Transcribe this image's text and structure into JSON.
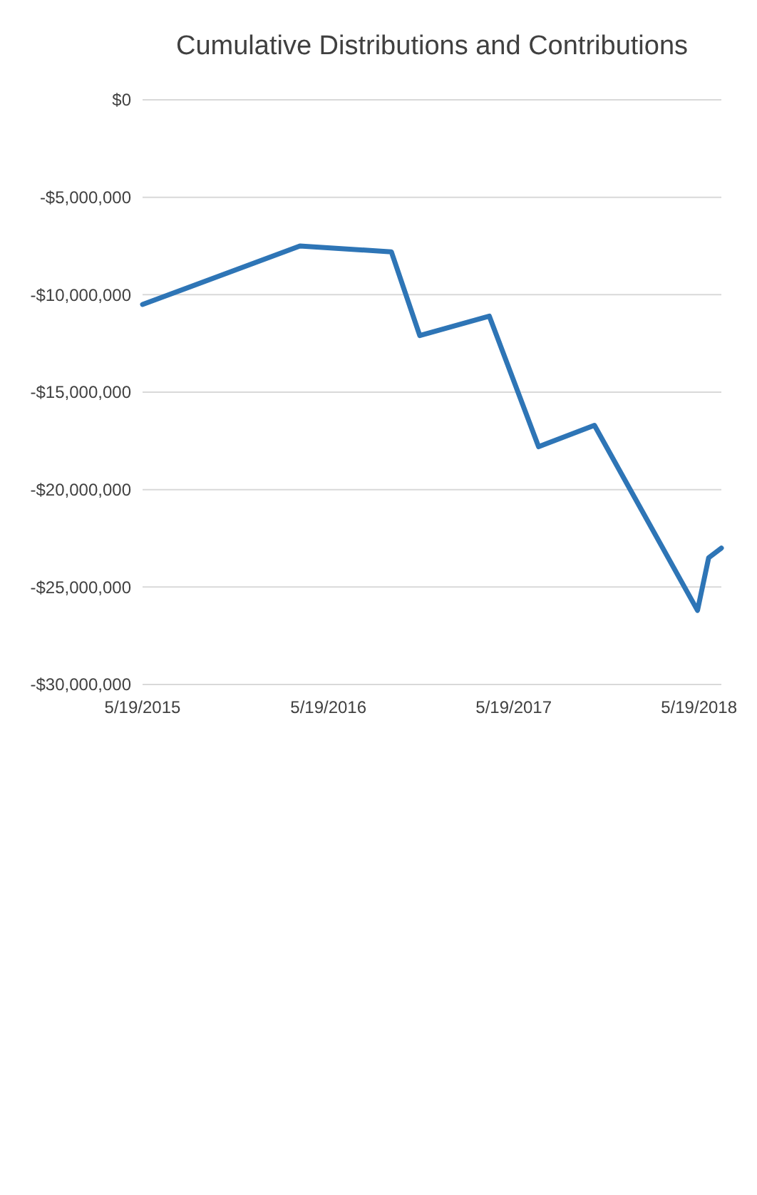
{
  "chart_data": {
    "type": "line",
    "title": "Cumulative Distributions and Contributions",
    "x": [
      "2015-05-19",
      "2016-03-24",
      "2016-09-20",
      "2016-11-15",
      "2017-04-01",
      "2017-07-07",
      "2017-10-25",
      "2018-05-16",
      "2018-06-07",
      "2018-07-02"
    ],
    "series": [
      {
        "color": "#2e75b6",
        "values": [
          -10500000,
          -7500000,
          -7800000,
          -12100000,
          -11100000,
          -17800000,
          -16700000,
          -26200000,
          -23500000,
          -23000000
        ]
      }
    ],
    "xlim": [
      "2015-05-19",
      "2018-07-02"
    ],
    "xticks": [
      {
        "value": "2015-05-19",
        "label": "5/19/2015"
      },
      {
        "value": "2016-05-19",
        "label": "5/19/2016"
      },
      {
        "value": "2017-05-19",
        "label": "5/19/2017"
      },
      {
        "value": "2018-05-19",
        "label": "5/19/2018"
      }
    ],
    "ylim": [
      -30000000,
      0
    ],
    "yticks": [
      {
        "value": -30000000,
        "label": "-$30,000,000"
      },
      {
        "value": -25000000,
        "label": "-$25,000,000"
      },
      {
        "value": -20000000,
        "label": "-$20,000,000"
      },
      {
        "value": -15000000,
        "label": "-$15,000,000"
      },
      {
        "value": -10000000,
        "label": "-$10,000,000"
      },
      {
        "value": -5000000,
        "label": "-$5,000,000"
      },
      {
        "value": 0,
        "label": "$0"
      }
    ],
    "grid": "y"
  }
}
